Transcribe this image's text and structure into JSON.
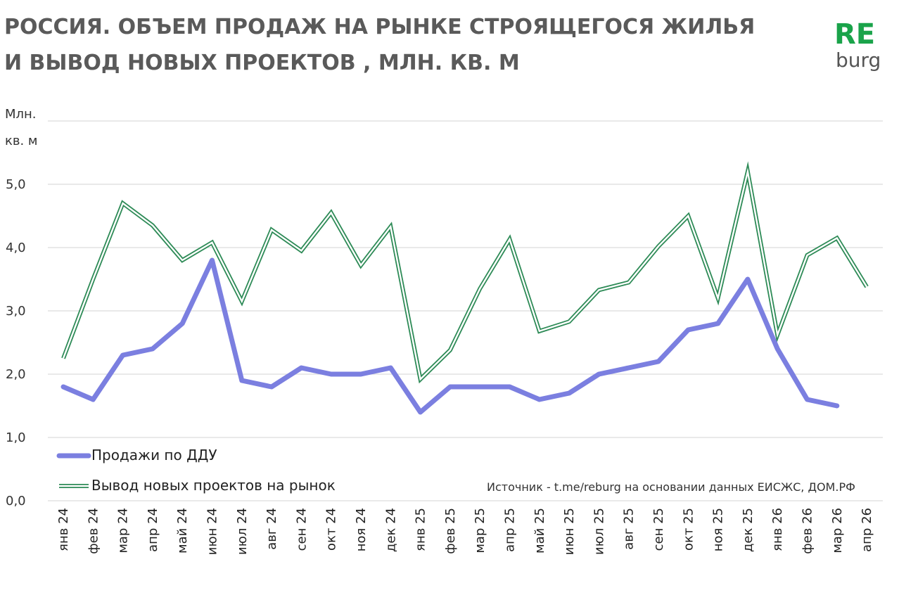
{
  "header": {
    "title_line1": "РОССИЯ. ОБЪЕМ ПРОДАЖ НА РЫНКЕ СТРОЯЩЕГОСЯ ЖИЛЬЯ",
    "title_line2": "И  ВЫВОД НОВЫХ ПРОЕКТОВ , МЛН. КВ. М"
  },
  "logo": {
    "top": "RE",
    "bottom": "burg"
  },
  "source": "Источник - t.me/reburg на основании данных ЕИСЖС, ДОМ.РФ",
  "colors": {
    "sales": "#7b7fe0",
    "projects": "#2e8b57",
    "title": "#5a5a5a",
    "logo": "#1aa34a"
  },
  "chart_data": {
    "type": "line",
    "ylabel_line1": "Млн.",
    "ylabel_line2": "кв. м",
    "ylim": [
      0,
      6
    ],
    "yticks": [
      "0,0",
      "1,0",
      "2,0",
      "3,0",
      "4,0",
      "5,0"
    ],
    "grid": true,
    "legend_placement": "bottom-left",
    "categories": [
      "янв 24",
      "фев 24",
      "мар 24",
      "апр 24",
      "май 24",
      "июн 24",
      "июл 24",
      "авг 24",
      "сен 24",
      "окт 24",
      "ноя 24",
      "дек 24",
      "янв 25",
      "фев 25",
      "мар 25",
      "апр 25",
      "май 25",
      "июн 25",
      "июл 25",
      "авг 25",
      "сен 25",
      "окт 25",
      "ноя 25",
      "дек 25",
      "янв 26",
      "фев 26",
      "мар 26",
      "апр 26"
    ],
    "series": [
      {
        "name": "Продажи по ДДУ",
        "style": "thick",
        "values": [
          1.8,
          1.6,
          2.3,
          2.4,
          2.8,
          3.8,
          1.9,
          1.8,
          2.1,
          2.0,
          2.0,
          2.1,
          1.4,
          1.8,
          1.8,
          1.8,
          1.6,
          1.7,
          2.0,
          2.1,
          2.2,
          2.7,
          2.8,
          3.5,
          2.4,
          1.6,
          1.5,
          null
        ]
      },
      {
        "name": "Вывод новых проектов на рынок",
        "style": "double",
        "values": [
          2.25,
          3.5,
          4.7,
          4.35,
          3.8,
          4.08,
          3.15,
          4.28,
          3.95,
          4.55,
          3.72,
          4.33,
          1.92,
          2.38,
          3.35,
          4.13,
          2.68,
          2.83,
          3.33,
          3.45,
          4.02,
          4.5,
          3.2,
          5.2,
          2.62,
          3.88,
          4.15,
          3.38
        ]
      }
    ]
  }
}
